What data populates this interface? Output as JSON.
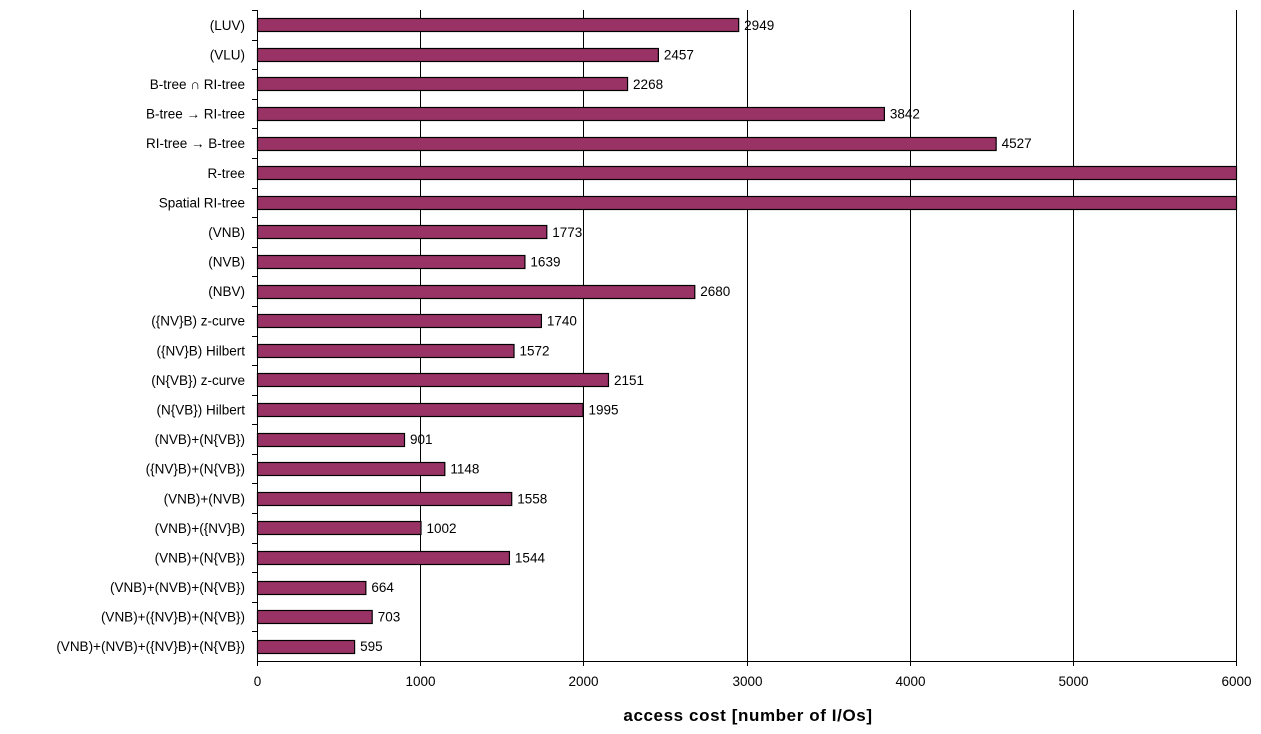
{
  "chart_data": {
    "type": "bar",
    "orientation": "horizontal",
    "categories": [
      "(LUV)",
      "(VLU)",
      "B-tree ∩ RI-tree",
      "B-tree → RI-tree",
      "RI-tree → B-tree",
      "R-tree",
      "Spatial RI-tree",
      "(VNB)",
      "(NVB)",
      "(NBV)",
      "({NV}B) z-curve",
      "({NV}B) Hilbert",
      "(N{VB}) z-curve",
      "(N{VB}) Hilbert",
      "(NVB)+(N{VB})",
      "({NV}B)+(N{VB})",
      "(VNB)+(NVB)",
      "(VNB)+({NV}B)",
      "(VNB)+(N{VB})",
      "(VNB)+(NVB)+(N{VB})",
      "(VNB)+({NV}B)+(N{VB})",
      "(VNB)+(NVB)+({NV}B)+(N{VB})"
    ],
    "values": [
      2949,
      2457,
      2268,
      3842,
      4527,
      6000,
      6000,
      1773,
      1639,
      2680,
      1740,
      1572,
      2151,
      1995,
      901,
      1148,
      1558,
      1002,
      1544,
      664,
      703,
      595
    ],
    "value_labels": [
      "2949",
      "2457",
      "2268",
      "3842",
      "4527",
      "",
      "",
      "1773",
      "1639",
      "2680",
      "1740",
      "1572",
      "2151",
      "1995",
      "901",
      "1148",
      "1558",
      "1002",
      "1544",
      "664",
      "703",
      "595"
    ],
    "xlabel": "access cost [number of I/Os]",
    "xlim": [
      0,
      6000
    ],
    "xticks": [
      "0",
      "1000",
      "2000",
      "3000",
      "4000",
      "5000",
      "6000"
    ],
    "xtick_values": [
      0,
      1000,
      2000,
      3000,
      4000,
      5000,
      6000
    ],
    "grid": "vertical",
    "bar_color": "#993366",
    "bar_stroke": "#000000",
    "gridline_color": "#000000"
  }
}
